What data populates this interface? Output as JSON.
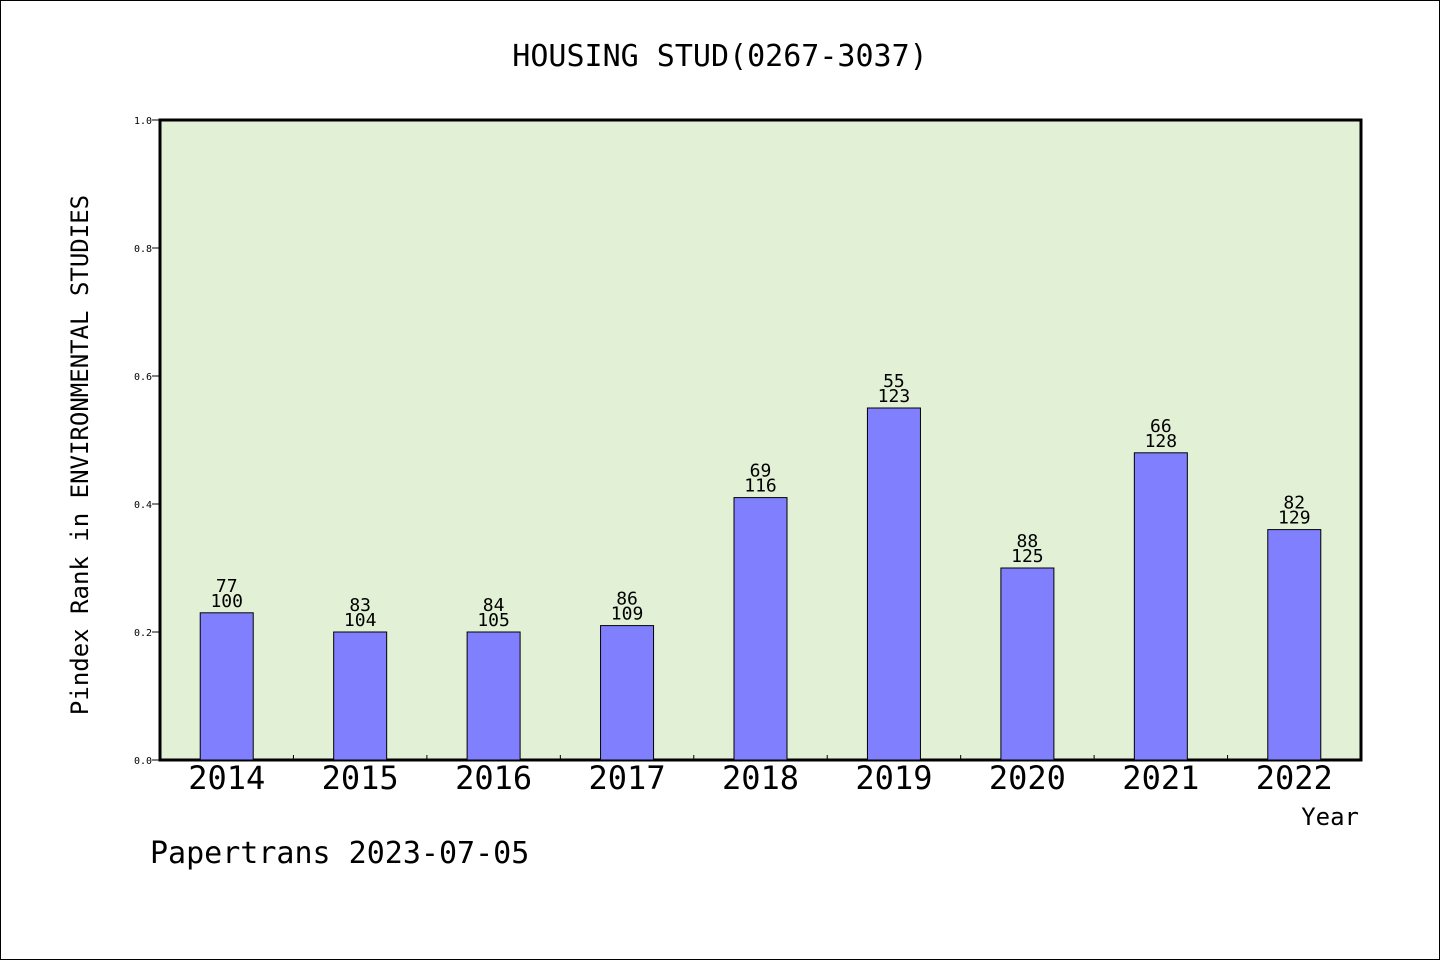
{
  "chart_data": {
    "type": "bar",
    "title": "HOUSING STUD(0267-3037)",
    "xlabel": "Year",
    "ylabel": "Pindex Rank in ENVIRONMENTAL STUDIES",
    "ylim": [
      0,
      1.0
    ],
    "yticks": [
      "0.0",
      "0.2",
      "0.4",
      "0.6",
      "0.8",
      "1.0"
    ],
    "categories": [
      "2014",
      "2015",
      "2016",
      "2017",
      "2018",
      "2019",
      "2020",
      "2021",
      "2022"
    ],
    "values": [
      0.23,
      0.2,
      0.2,
      0.21,
      0.41,
      0.55,
      0.3,
      0.48,
      0.36
    ],
    "rank_labels": [
      "77",
      "83",
      "84",
      "86",
      "69",
      "55",
      "88",
      "66",
      "82"
    ],
    "count_labels": [
      "100",
      "104",
      "105",
      "109",
      "116",
      "123",
      "125",
      "128",
      "129"
    ],
    "grid": false,
    "colors": {
      "plot_background": "#e2f0d6",
      "bar_fill": "#8080ff",
      "bar_stroke": "#000000"
    }
  },
  "footer": "Papertrans 2023-07-05"
}
